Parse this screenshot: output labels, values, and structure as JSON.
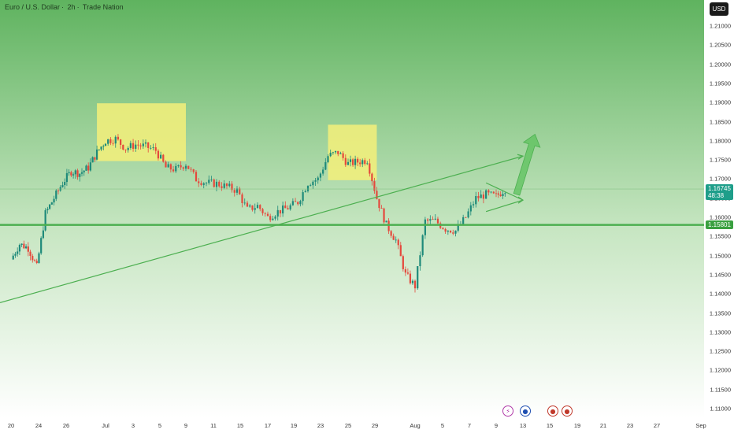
{
  "header": {
    "symbol": "Euro / U.S. Dollar",
    "interval": "2h",
    "source": "Trade Nation",
    "sep": "·"
  },
  "currency": "USD",
  "price_axis": {
    "ticks": [
      "1.21000",
      "1.20500",
      "1.20000",
      "1.19500",
      "1.19000",
      "1.18500",
      "1.18000",
      "1.17500",
      "1.17000",
      "1.16500",
      "1.16000",
      "1.15500",
      "1.15000",
      "1.14500",
      "1.14000",
      "1.13500",
      "1.13000",
      "1.12500",
      "1.12000",
      "1.11500",
      "1.11000"
    ],
    "tick_values": [
      1.21,
      1.205,
      1.2,
      1.195,
      1.19,
      1.185,
      1.18,
      1.175,
      1.17,
      1.165,
      1.16,
      1.155,
      1.15,
      1.145,
      1.14,
      1.135,
      1.13,
      1.125,
      1.12,
      1.115,
      1.11
    ],
    "last_price": "1.16745",
    "countdown": "48:38",
    "level_label": "1.15801"
  },
  "time_axis": {
    "labels": [
      "20",
      "24",
      "26",
      "Jul",
      "3",
      "5",
      "9",
      "11",
      "15",
      "17",
      "19",
      "23",
      "25",
      "29",
      "Aug",
      "5",
      "7",
      "9",
      "13",
      "15",
      "19",
      "21",
      "23",
      "27",
      "Sep"
    ]
  },
  "events": [
    {
      "icon": "lightning-icon",
      "glyph": "⚡",
      "color": "#b03aa8"
    },
    {
      "icon": "eu-flag-icon",
      "glyph": "●",
      "color": "#1f4fb0"
    },
    {
      "icon": "us-flag-icon",
      "glyph": "●",
      "color": "#c0392b"
    },
    {
      "icon": "us-flag-icon",
      "glyph": "●",
      "color": "#c0392b"
    }
  ],
  "colors": {
    "bg_top": "#5fb35f",
    "bg_bottom": "#ffffff",
    "up": "#1e8a7a",
    "down": "#e5483c",
    "support": "#4caf50",
    "zone": "#f4f07a",
    "price_tag": "#1e9e8a",
    "level_tag": "#3aa040"
  },
  "chart_data": {
    "type": "candlestick",
    "symbol": "EURUSD",
    "interval": "2h",
    "ylim": [
      1.105,
      1.215
    ],
    "x_range_days": [
      "Jun 20",
      "Sep 1"
    ],
    "close_path": [
      [
        "Jun 20",
        1.149
      ],
      [
        "Jun 21",
        1.153
      ],
      [
        "Jun 22",
        1.152
      ],
      [
        "Jun 23",
        1.147
      ],
      [
        "Jun 24",
        1.161
      ],
      [
        "Jun 25",
        1.165
      ],
      [
        "Jun 26",
        1.169
      ],
      [
        "Jun 27",
        1.172
      ],
      [
        "Jun 28",
        1.1715
      ],
      [
        "Jun 29",
        1.173
      ],
      [
        "Jun 30",
        1.177
      ],
      [
        "Jul 1",
        1.18
      ],
      [
        "Jul 2",
        1.1805
      ],
      [
        "Jul 3",
        1.178
      ],
      [
        "Jul 4",
        1.179
      ],
      [
        "Jul 5",
        1.1785
      ],
      [
        "Jul 6",
        1.1775
      ],
      [
        "Jul 7",
        1.173
      ],
      [
        "Jul 8",
        1.1725
      ],
      [
        "Jul 9",
        1.174
      ],
      [
        "Jul 10",
        1.17
      ],
      [
        "Jul 11",
        1.169
      ],
      [
        "Jul 12",
        1.1688
      ],
      [
        "Jul 13",
        1.168
      ],
      [
        "Jul 14",
        1.167
      ],
      [
        "Jul 15",
        1.162
      ],
      [
        "Jul 16",
        1.163
      ],
      [
        "Jul 17",
        1.16
      ],
      [
        "Jul 18",
        1.1615
      ],
      [
        "Jul 19",
        1.1625
      ],
      [
        "Jul 20",
        1.164
      ],
      [
        "Jul 21",
        1.169
      ],
      [
        "Jul 22",
        1.17
      ],
      [
        "Jul 23",
        1.176
      ],
      [
        "Jul 24",
        1.177
      ],
      [
        "Jul 25",
        1.174
      ],
      [
        "Jul 26",
        1.1745
      ],
      [
        "Jul 27",
        1.175
      ],
      [
        "Jul 28",
        1.165
      ],
      [
        "Jul 29",
        1.158
      ],
      [
        "Jul 30",
        1.154
      ],
      [
        "Jul 31",
        1.145
      ],
      [
        "Aug 1",
        1.142
      ],
      [
        "Aug 2",
        1.159
      ],
      [
        "Aug 3",
        1.159
      ],
      [
        "Aug 4",
        1.157
      ],
      [
        "Aug 5",
        1.1565
      ],
      [
        "Aug 6",
        1.16
      ],
      [
        "Aug 7",
        1.165
      ],
      [
        "Aug 8",
        1.166
      ],
      [
        "Aug 9",
        1.1655
      ],
      [
        "Aug 10",
        1.1674
      ]
    ],
    "horizontal_level": 1.15801,
    "resistance_zones": [
      {
        "from": "Jun 30",
        "to": "Jul 9",
        "low": 1.1747,
        "high": 1.1898
      },
      {
        "from": "Jul 23",
        "to": "Jul 28",
        "low": 1.1697,
        "high": 1.1842
      }
    ],
    "trendline": {
      "from": [
        "Jun 20",
        1.1377
      ],
      "to": [
        "Aug 12",
        1.176
      ]
    },
    "triangle": {
      "upper_from": [
        "Aug 8",
        1.169
      ],
      "apex": [
        "Aug 12",
        1.1645
      ],
      "lower_from": [
        "Aug 8",
        1.1615
      ]
    },
    "projection_arrow": {
      "from": [
        "Aug 12",
        1.166
      ],
      "to": [
        "Aug 13",
        1.1817
      ]
    }
  }
}
